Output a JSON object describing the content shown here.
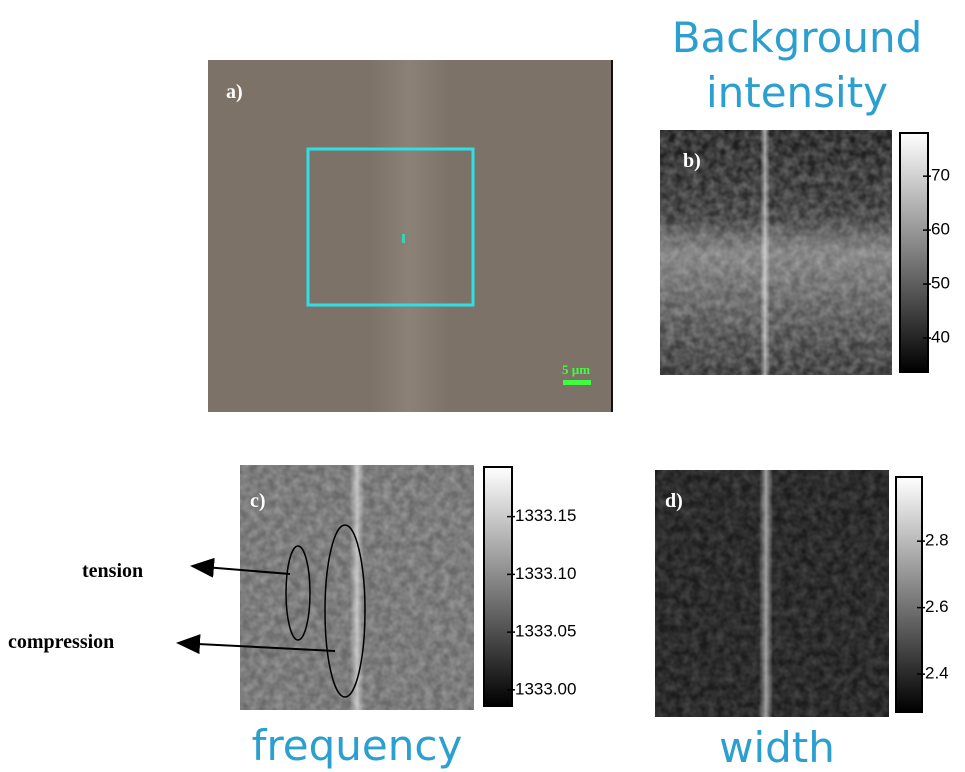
{
  "panels": [
    {
      "label": "a)",
      "scale_bar": "5 µm"
    },
    {
      "label": "b)",
      "title": "Background intensity",
      "colorbar": {
        "lim": [
          33.7,
          78
        ],
        "ticks": [
          40,
          50,
          60,
          70
        ]
      }
    },
    {
      "label": "c)",
      "title": "frequency",
      "colorbar": {
        "lim": [
          1332.986,
          1333.193
        ],
        "ticks": [
          {
            "value": 1333,
            "label": "1333.00"
          },
          {
            "value": 1333.05,
            "label": "1333.05"
          },
          {
            "value": 1333.1,
            "label": "1333.10"
          },
          {
            "value": 1333.15,
            "label": "1333.15"
          }
        ]
      }
    },
    {
      "label": "d)",
      "title": "width",
      "colorbar": {
        "lim": [
          2.286,
          2.993
        ],
        "ticks": [
          2.4,
          2.6,
          2.8
        ]
      }
    }
  ],
  "annotations": [
    "tension",
    "compression"
  ]
}
